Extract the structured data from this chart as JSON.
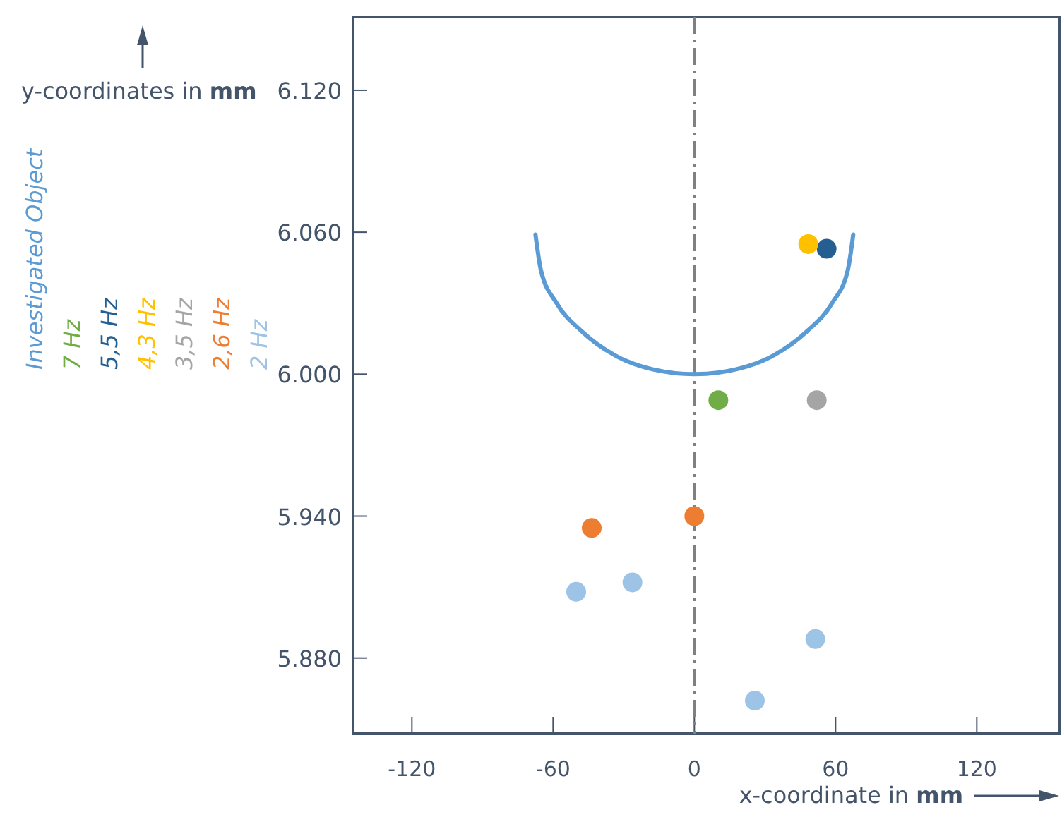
{
  "chart_data": {
    "type": "scatter",
    "xlabel": "x-coordinate in mm",
    "ylabel": "y-coordinates in mm",
    "xlim": [
      -145,
      155
    ],
    "ylim": [
      5848,
      6151
    ],
    "xticks": [
      -120,
      -60,
      0,
      60,
      120
    ],
    "yticks": [
      {
        "value": 5880,
        "label": "5.880"
      },
      {
        "value": 5940,
        "label": "5.940"
      },
      {
        "value": 6000,
        "label": "6.000"
      },
      {
        "value": 6060,
        "label": "6.060"
      },
      {
        "value": 6120,
        "label": "6.120"
      }
    ],
    "grid": false,
    "legend": "left",
    "marker": "circle",
    "ref_lines": [
      {
        "axis": "x",
        "value": 0,
        "color": "#808080",
        "line_style": "dashed"
      }
    ],
    "series": [
      {
        "name": "Investigated Object",
        "type": "line",
        "marker": "none",
        "color": "#5b9bd5",
        "x": [
          -67.5,
          -65.2,
          -58.5,
          -47.7,
          -33.8,
          -17.5,
          0,
          17.5,
          33.8,
          47.7,
          58.5,
          65.2,
          67.5
        ],
        "values": [
          6059,
          6044,
          6030,
          6018,
          6008,
          6002,
          6000,
          6002,
          6008,
          6018,
          6030,
          6044,
          6059
        ]
      },
      {
        "name": "7 Hz",
        "color": "#70ad47",
        "x": [
          10.2
        ],
        "values": [
          5989
        ]
      },
      {
        "name": "5,5 Hz",
        "color": "#255e91",
        "x": [
          56.2
        ],
        "values": [
          6053
        ]
      },
      {
        "name": "4,3 Hz",
        "color": "#ffc000",
        "x": [
          48.4
        ],
        "values": [
          6055
        ]
      },
      {
        "name": "3,5 Hz",
        "color": "#a5a5a5",
        "x": [
          52
        ],
        "values": [
          5989
        ]
      },
      {
        "name": "2,6 Hz",
        "color": "#ed7d31",
        "x": [
          -43.6,
          0
        ],
        "values": [
          5935,
          5940
        ]
      },
      {
        "name": "2 Hz",
        "color": "#9dc3e6",
        "x": [
          -50.2,
          -26.3,
          51.4,
          25.7
        ],
        "values": [
          5908,
          5912,
          5888,
          5862
        ]
      }
    ]
  }
}
